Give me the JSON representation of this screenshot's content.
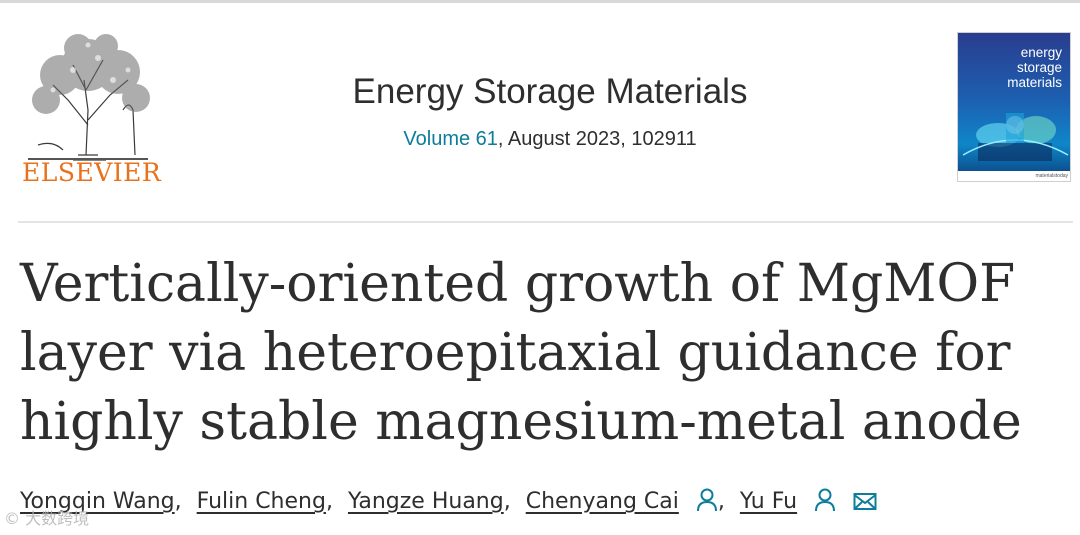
{
  "publisher": {
    "name": "ELSEVIER",
    "logo_icon": "elsevier-tree-logo"
  },
  "journal": {
    "title": "Energy Storage Materials",
    "volume_link": "Volume 61",
    "issue_rest": ", August 2023, 102911"
  },
  "cover": {
    "title_lines": [
      "energy",
      "storage",
      "materials"
    ],
    "footer": "materialstoday"
  },
  "article": {
    "title": "Vertically-oriented growth of MgMOF layer via heteroepitaxial guidance for highly stable magnesium-metal anode"
  },
  "authors": [
    {
      "name": "Yongqin Wang",
      "sep": ","
    },
    {
      "name": "Fulin Cheng",
      "sep": ","
    },
    {
      "name": "Yangze Huang",
      "sep": ","
    },
    {
      "name": "Chenyang Cai",
      "sep": ",",
      "person_icon": true
    },
    {
      "name": "Yu Fu",
      "sep": "",
      "person_icon": true,
      "mail_icon": true
    }
  ],
  "colors": {
    "link": "#0c7d9a",
    "elsevier_orange": "#e9711c",
    "text": "#2e2e2e"
  },
  "watermark": "© 大数跨境"
}
